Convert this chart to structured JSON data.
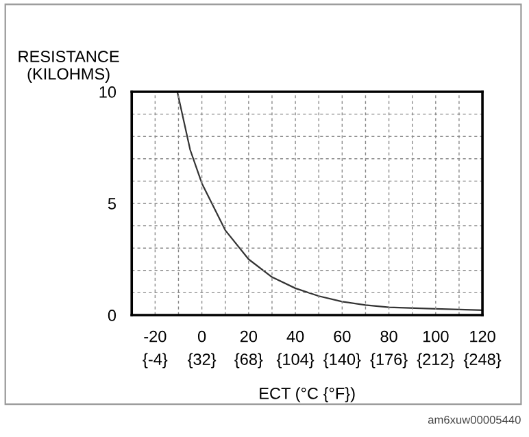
{
  "chart_data": {
    "type": "line",
    "xlabel": "ECT (°C {°F})",
    "ylabel": "RESISTANCE\n(KILOHMS)",
    "x": [
      -10.5,
      -5,
      0,
      10,
      20,
      30,
      40,
      50,
      60,
      70,
      80,
      100,
      120
    ],
    "series": [
      {
        "color": "#333333",
        "values": [
          10,
          7.4,
          5.9,
          3.8,
          2.5,
          1.7,
          1.2,
          0.85,
          0.6,
          0.45,
          0.35,
          0.28,
          0.22
        ]
      }
    ],
    "xlim": [
      -30,
      120
    ],
    "ylim": [
      0,
      10
    ],
    "xticks": [
      -20,
      0,
      20,
      40,
      60,
      80,
      100,
      120
    ],
    "x2lim": [
      -22,
      248
    ],
    "x2ticks": [
      {
        "value": -4,
        "label": "{-4}"
      },
      {
        "value": 32,
        "label": "{32}"
      },
      {
        "value": 68,
        "label": "{68}"
      },
      {
        "value": 104,
        "label": "{104}"
      },
      {
        "value": 140,
        "label": "{140}"
      },
      {
        "value": 176,
        "label": "{176}"
      },
      {
        "value": 212,
        "label": "{212}"
      },
      {
        "value": 248,
        "label": "{248}"
      }
    ],
    "yticks": [
      0,
      5,
      10
    ],
    "grid": true,
    "marker": "none",
    "line_style": "solid",
    "annotations": [
      "am6xuw00005440"
    ]
  }
}
